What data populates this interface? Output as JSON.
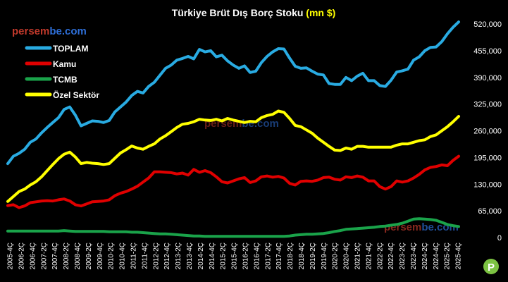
{
  "chart_data": {
    "type": "line",
    "title_main": "Türkiye Brüt Dış Borç Stoku ",
    "title_unit": "(mn $)",
    "watermark_prefix": "persem",
    "watermark_suffix": "be.com",
    "logo_letter": "P",
    "ylim": [
      0,
      520000
    ],
    "y_ticks": [
      0,
      65000,
      130000,
      195000,
      260000,
      325000,
      390000,
      455000,
      520000
    ],
    "y_tick_labels": [
      "0",
      "65,000",
      "130,000",
      "195,000",
      "260,000",
      "325,000",
      "390,000",
      "455,000",
      "520,000"
    ],
    "x_tick_labels": [
      "2005-4Ç",
      "2006-2Ç",
      "2006-4Ç",
      "2007-2Ç",
      "2007-4Ç",
      "2008-2Ç",
      "2008-4Ç",
      "2009-2Ç",
      "2009-4Ç",
      "2010-2Ç",
      "2010-4Ç",
      "2011-2Ç",
      "2011-4Ç",
      "2012-2Ç",
      "2012-4Ç",
      "2013-2Ç",
      "2013-4Ç",
      "2014-2Ç",
      "2014-4Ç",
      "2015-2Ç",
      "2015-4Ç",
      "2016-2Ç",
      "2016-4Ç",
      "2017-2Ç",
      "2017-4Ç",
      "2018-2Ç",
      "2018-4Ç",
      "2019-2Ç",
      "2019-4Ç",
      "2020-2Ç",
      "2020-4Ç",
      "2021-2Ç",
      "2021-4Ç",
      "2022-2Ç",
      "2022-4Ç",
      "2023-2Ç",
      "2023-4Ç",
      "2024-2Ç",
      "2024-4Ç",
      "2025-2Ç",
      "2025-4Ç"
    ],
    "legend_position": "top-left",
    "grid": false,
    "colors": {
      "background": "#000000",
      "title": "#ffffff",
      "title_unit": "#ffff00",
      "watermark_prefix": "#c0392b",
      "watermark_suffix": "#2e6fd8",
      "axis_text": "#ffffff",
      "logo": "#7cc242"
    },
    "series": [
      {
        "name": "TOPLAM",
        "color": "#29abe2",
        "values": [
          180000,
          198000,
          205000,
          215000,
          232000,
          240000,
          255000,
          268000,
          280000,
          292000,
          312000,
          318000,
          298000,
          272000,
          278000,
          284000,
          283000,
          280000,
          285000,
          306000,
          318000,
          330000,
          346000,
          356000,
          352000,
          368000,
          378000,
          395000,
          412000,
          420000,
          432000,
          436000,
          441000,
          435000,
          458000,
          452000,
          455000,
          440000,
          444000,
          430000,
          420000,
          412000,
          418000,
          402000,
          405000,
          426000,
          441000,
          452000,
          460000,
          459000,
          437000,
          417000,
          412000,
          413000,
          405000,
          398000,
          396000,
          375000,
          373000,
          373000,
          390000,
          382000,
          393000,
          400000,
          382000,
          382000,
          370000,
          368000,
          383000,
          403000,
          406000,
          410000,
          432000,
          440000,
          455000,
          463000,
          464000,
          477000,
          496000,
          512000,
          525000
        ]
      },
      {
        "name": "Kamu",
        "color": "#e00000",
        "values": [
          78000,
          80000,
          73000,
          77000,
          85000,
          87000,
          89000,
          90000,
          89000,
          92000,
          94000,
          89000,
          80000,
          77000,
          82000,
          87000,
          88000,
          89000,
          92000,
          102000,
          108000,
          112000,
          118000,
          125000,
          135000,
          145000,
          160000,
          160000,
          159000,
          158000,
          155000,
          157000,
          152000,
          166000,
          159000,
          163000,
          158000,
          148000,
          136000,
          133000,
          138000,
          143000,
          146000,
          134000,
          138000,
          148000,
          150000,
          147000,
          149000,
          145000,
          132000,
          128000,
          137000,
          138000,
          137000,
          140000,
          146000,
          147000,
          142000,
          140000,
          148000,
          146000,
          150000,
          147000,
          138000,
          138000,
          124000,
          118000,
          124000,
          138000,
          135000,
          138000,
          145000,
          154000,
          165000,
          171000,
          173000,
          177000,
          175000,
          188000,
          198000
        ]
      },
      {
        "name": "TCMB",
        "color": "#1aa34a",
        "values": [
          16000,
          16000,
          16000,
          16000,
          16000,
          16000,
          16000,
          16000,
          16000,
          16000,
          17000,
          16000,
          15000,
          15000,
          15000,
          15000,
          15000,
          15000,
          14000,
          14000,
          14000,
          14000,
          13000,
          13000,
          12000,
          11000,
          10000,
          9000,
          9000,
          8000,
          7000,
          6000,
          5000,
          4000,
          4000,
          3000,
          3000,
          3000,
          3000,
          3000,
          3000,
          3000,
          3000,
          3000,
          3000,
          3000,
          3000,
          3000,
          3000,
          3000,
          4000,
          6000,
          7000,
          8000,
          8000,
          9000,
          10000,
          12000,
          15000,
          17000,
          20000,
          21000,
          22000,
          23000,
          24000,
          25000,
          27000,
          28000,
          30000,
          32000,
          35000,
          40000,
          45000,
          46000,
          45000,
          44000,
          42000,
          37000,
          32000,
          29000,
          27000
        ]
      },
      {
        "name": "Özel Sektör",
        "color": "#ffff00",
        "values": [
          88000,
          100000,
          112000,
          118000,
          128000,
          136000,
          148000,
          163000,
          178000,
          192000,
          203000,
          208000,
          196000,
          180000,
          183000,
          181000,
          180000,
          178000,
          180000,
          193000,
          206000,
          214000,
          223000,
          218000,
          215000,
          222000,
          228000,
          240000,
          248000,
          258000,
          268000,
          276000,
          278000,
          282000,
          288000,
          286000,
          285000,
          288000,
          284000,
          290000,
          286000,
          283000,
          280000,
          283000,
          282000,
          292000,
          297000,
          300000,
          308000,
          305000,
          290000,
          273000,
          270000,
          262000,
          254000,
          242000,
          232000,
          222000,
          213000,
          212000,
          218000,
          215000,
          222000,
          222000,
          220000,
          220000,
          220000,
          220000,
          220000,
          225000,
          228000,
          228000,
          232000,
          236000,
          238000,
          246000,
          250000,
          260000,
          270000,
          282000,
          295000
        ]
      }
    ]
  }
}
